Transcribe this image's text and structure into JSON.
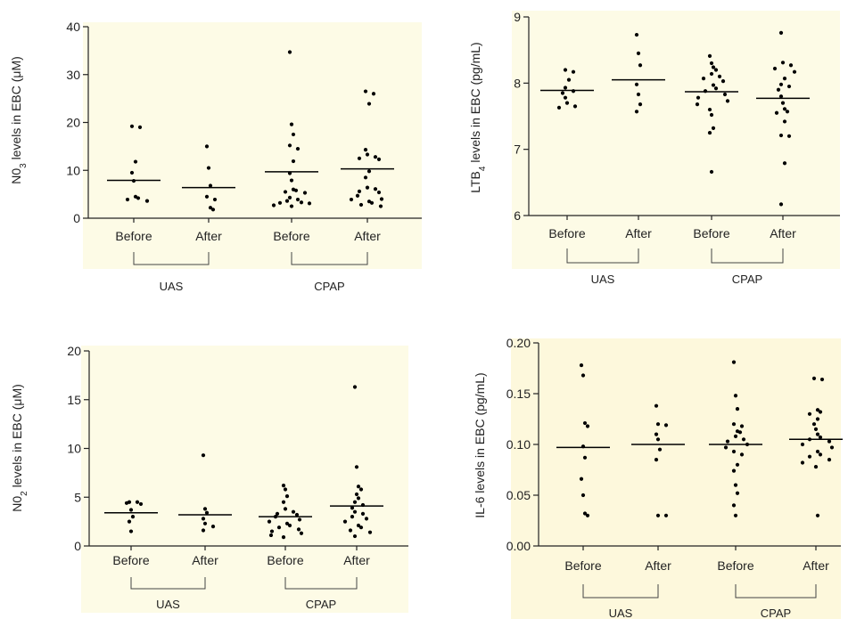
{
  "chart_data": [
    {
      "type": "scatter",
      "ylabel": "N0₃ levels in EBC (μM)",
      "ylabel_main": "N0",
      "ylabel_sub": "3",
      "ylabel_rest": " levels in EBC (μM)",
      "ylim": [
        0,
        40
      ],
      "yticks": [
        "0",
        "10",
        "20",
        "30",
        "40"
      ],
      "categories": [
        "Before",
        "After",
        "Before",
        "After"
      ],
      "groups": [
        {
          "label": "UAS",
          "span": [
            0,
            1
          ]
        },
        {
          "label": "CPAP",
          "span": [
            2,
            3
          ]
        }
      ],
      "background": "#fdfbe6",
      "means": [
        7.9,
        6.4,
        9.7,
        10.3
      ],
      "points": [
        [
          19.2,
          19.0,
          11.8,
          9.5,
          7.8,
          4.5,
          4.2,
          3.9,
          3.6
        ],
        [
          15.0,
          10.5,
          6.8,
          4.5,
          3.9,
          2.2,
          1.8
        ],
        [
          34.7,
          19.6,
          17.5,
          15.2,
          14.5,
          11.9,
          9.4,
          7.9,
          6.0,
          5.8,
          5.5,
          5.3,
          4.3,
          3.9,
          3.6,
          3.3,
          3.2,
          3.1,
          2.7,
          2.5
        ],
        [
          26.5,
          26.0,
          23.9,
          14.3,
          13.3,
          12.8,
          12.5,
          12.3,
          9.8,
          8.5,
          6.4,
          6.1,
          5.6,
          5.4,
          4.7,
          4.0,
          3.9,
          3.5,
          3.2,
          2.8,
          2.5
        ]
      ]
    },
    {
      "type": "scatter",
      "ylabel": "LTB₄ levels in EBC (pg/mL)",
      "ylabel_main": "LTB",
      "ylabel_sub": "4",
      "ylabel_rest": " levels in EBC (pg/mL)",
      "ylim": [
        6,
        9
      ],
      "yticks": [
        "6",
        "7",
        "8",
        "9"
      ],
      "categories": [
        "Before",
        "After",
        "Before",
        "After"
      ],
      "groups": [
        {
          "label": "UAS",
          "span": [
            0,
            1
          ]
        },
        {
          "label": "CPAP",
          "span": [
            2,
            3
          ]
        }
      ],
      "background": "#fdfbe6",
      "means": [
        7.89,
        8.05,
        7.87,
        7.77
      ],
      "points": [
        [
          8.2,
          8.17,
          8.05,
          7.93,
          7.88,
          7.85,
          7.78,
          7.7,
          7.65,
          7.63
        ],
        [
          8.73,
          8.45,
          8.27,
          7.98,
          7.83,
          7.68,
          7.57
        ],
        [
          8.41,
          8.3,
          8.24,
          8.2,
          8.14,
          8.1,
          8.07,
          8.03,
          7.97,
          7.92,
          7.88,
          7.83,
          7.78,
          7.73,
          7.68,
          7.6,
          7.52,
          7.32,
          7.25,
          6.66
        ],
        [
          8.76,
          8.31,
          8.27,
          8.22,
          8.17,
          8.07,
          7.98,
          7.95,
          7.9,
          7.8,
          7.7,
          7.61,
          7.57,
          7.55,
          7.42,
          7.21,
          7.2,
          6.79,
          6.17
        ]
      ]
    },
    {
      "type": "scatter",
      "ylabel": "N0₂ levels in EBC (μM)",
      "ylabel_main": "N0",
      "ylabel_sub": "2",
      "ylabel_rest": " levels in EBC (μM)",
      "ylim": [
        0,
        20
      ],
      "yticks": [
        "0",
        "5",
        "10",
        "15",
        "20"
      ],
      "categories": [
        "Before",
        "After",
        "Before",
        "After"
      ],
      "groups": [
        {
          "label": "UAS",
          "span": [
            0,
            1
          ]
        },
        {
          "label": "CPAP",
          "span": [
            2,
            3
          ]
        }
      ],
      "background": "#fdfbe6",
      "means": [
        3.4,
        3.2,
        3.0,
        4.1
      ],
      "points": [
        [
          4.5,
          4.5,
          4.4,
          4.3,
          3.7,
          3.0,
          2.5,
          1.5
        ],
        [
          9.3,
          3.8,
          3.4,
          2.8,
          2.3,
          2.0,
          1.6
        ],
        [
          6.2,
          5.8,
          5.1,
          4.5,
          3.8,
          3.5,
          3.3,
          3.2,
          3.0,
          2.7,
          2.5,
          2.3,
          2.1,
          1.9,
          1.7,
          1.5,
          1.3,
          1.1,
          0.9
        ],
        [
          16.3,
          8.1,
          6.1,
          5.8,
          5.3,
          4.9,
          4.5,
          4.2,
          3.9,
          3.5,
          3.3,
          3.0,
          2.8,
          2.5,
          2.1,
          1.9,
          1.6,
          1.4,
          1.0
        ]
      ]
    },
    {
      "type": "scatter",
      "ylabel": "IL-6 levels in EBC (pg/mL)",
      "ylabel_main": "IL-6 levels in EBC (pg/mL)",
      "ylabel_sub": "",
      "ylabel_rest": "",
      "ylim": [
        0,
        0.2
      ],
      "yticks": [
        "0.00",
        "0.05",
        "0.10",
        "0.15",
        "0.20"
      ],
      "categories": [
        "Before",
        "After",
        "Before",
        "After"
      ],
      "groups": [
        {
          "label": "UAS",
          "span": [
            0,
            1
          ]
        },
        {
          "label": "CPAP",
          "span": [
            2,
            3
          ]
        }
      ],
      "background": "#fdf8dc",
      "means": [
        0.097,
        0.1,
        0.1,
        0.105
      ],
      "points": [
        [
          0.178,
          0.168,
          0.121,
          0.118,
          0.098,
          0.087,
          0.066,
          0.05,
          0.032,
          0.03
        ],
        [
          0.138,
          0.12,
          0.119,
          0.11,
          0.105,
          0.095,
          0.085,
          0.03,
          0.03
        ],
        [
          0.181,
          0.148,
          0.135,
          0.12,
          0.118,
          0.113,
          0.112,
          0.108,
          0.105,
          0.103,
          0.1,
          0.097,
          0.093,
          0.09,
          0.08,
          0.074,
          0.06,
          0.052,
          0.04,
          0.03
        ],
        [
          0.165,
          0.164,
          0.134,
          0.132,
          0.13,
          0.125,
          0.12,
          0.115,
          0.11,
          0.107,
          0.105,
          0.103,
          0.1,
          0.097,
          0.093,
          0.09,
          0.088,
          0.085,
          0.082,
          0.078,
          0.03
        ]
      ]
    }
  ]
}
